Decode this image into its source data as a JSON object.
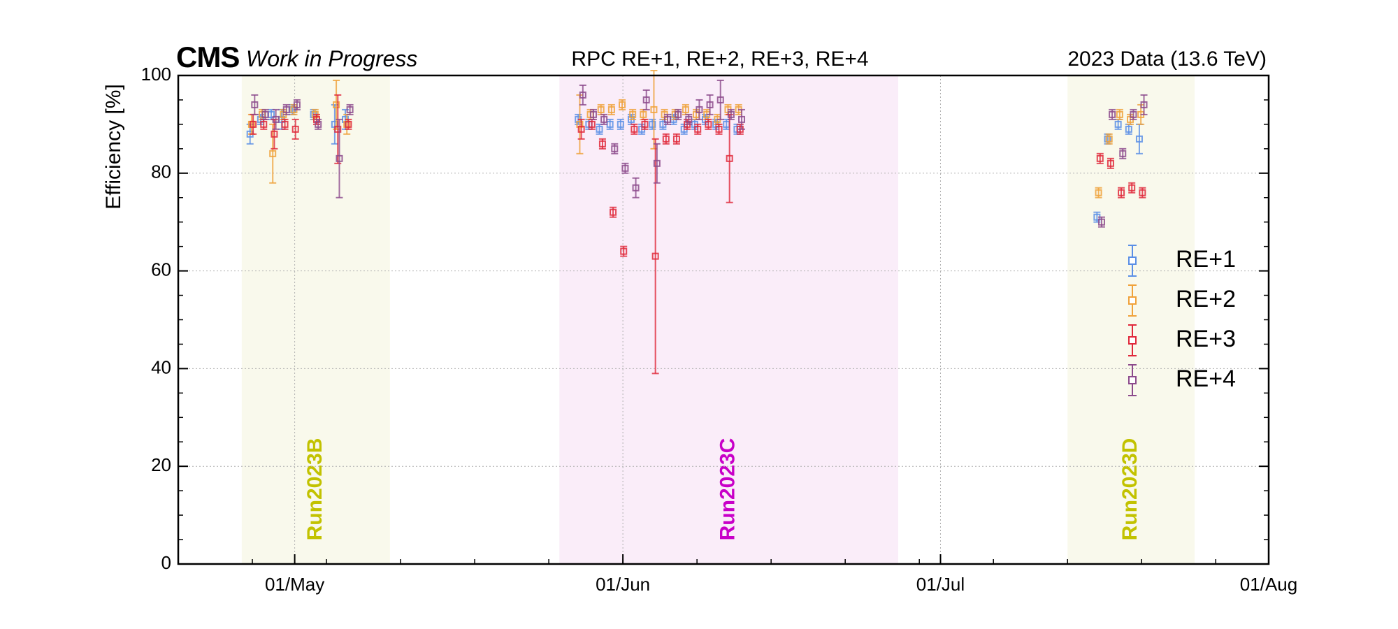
{
  "header": {
    "logo": "CMS",
    "extra": "Work in Progress",
    "title": "RPC RE+1, RE+2, RE+3, RE+4",
    "lumi": "2023 Data (13.6 TeV)"
  },
  "chart_data": {
    "type": "scatter",
    "title": "RPC RE+1, RE+2, RE+3, RE+4",
    "ylabel": "Efficiency [%]",
    "xlabel": "",
    "xlim": [
      "2023-04-20",
      "2023-08-01"
    ],
    "ylim": [
      0,
      100
    ],
    "yticks": [
      0,
      20,
      40,
      60,
      80,
      100
    ],
    "xticks": [
      {
        "date": "2023-05-01",
        "label": "01/May"
      },
      {
        "date": "2023-06-01",
        "label": "01/Jun"
      },
      {
        "date": "2023-07-01",
        "label": "01/Jul"
      },
      {
        "date": "2023-08-01",
        "label": "01/Aug"
      }
    ],
    "grid": true,
    "legend_position": "right",
    "eras": [
      {
        "name": "Run2023B",
        "start": "2023-04-26",
        "end": "2023-05-10",
        "color": "#c2c200",
        "fill": "#f9f9ec"
      },
      {
        "name": "Run2023C",
        "start": "2023-05-26",
        "end": "2023-06-27",
        "color": "#c800c8",
        "fill": "#faedf9"
      },
      {
        "name": "Run2023D",
        "start": "2023-07-13",
        "end": "2023-07-25",
        "color": "#c2c200",
        "fill": "#f9f9ec"
      }
    ],
    "series": [
      {
        "name": "RE+1",
        "color": "#5b8fe6",
        "points": [
          [
            "2023-04-27",
            88,
            2
          ],
          [
            "2023-04-28",
            91,
            1
          ],
          [
            "2023-04-29",
            92,
            1
          ],
          [
            "2023-04-30",
            91,
            2
          ],
          [
            "2023-05-01",
            93,
            1
          ],
          [
            "2023-05-03",
            92,
            1
          ],
          [
            "2023-05-05",
            90,
            4
          ],
          [
            "2023-05-06",
            91,
            2
          ],
          [
            "2023-05-28",
            91,
            1
          ],
          [
            "2023-05-29",
            90,
            1
          ],
          [
            "2023-05-30",
            89,
            1
          ],
          [
            "2023-05-31",
            90,
            1
          ],
          [
            "2023-06-01",
            90,
            1
          ],
          [
            "2023-06-02",
            91,
            1
          ],
          [
            "2023-06-03",
            89,
            1
          ],
          [
            "2023-06-04",
            90,
            1
          ],
          [
            "2023-06-05",
            90,
            1
          ],
          [
            "2023-06-06",
            91,
            1
          ],
          [
            "2023-06-07",
            89,
            1
          ],
          [
            "2023-06-08",
            90,
            1
          ],
          [
            "2023-06-09",
            91,
            1
          ],
          [
            "2023-06-10",
            90,
            1
          ],
          [
            "2023-06-11",
            90,
            1
          ],
          [
            "2023-06-12",
            89,
            1
          ],
          [
            "2023-07-16",
            71,
            1
          ],
          [
            "2023-07-17",
            87,
            1
          ],
          [
            "2023-07-18",
            90,
            1
          ],
          [
            "2023-07-19",
            89,
            1
          ],
          [
            "2023-07-20",
            87,
            3
          ]
        ]
      },
      {
        "name": "RE+2",
        "color": "#f0a23a",
        "points": [
          [
            "2023-04-27",
            90,
            2
          ],
          [
            "2023-04-28",
            92,
            1
          ],
          [
            "2023-04-29",
            84,
            6
          ],
          [
            "2023-04-30",
            92,
            1
          ],
          [
            "2023-05-01",
            93,
            1
          ],
          [
            "2023-05-03",
            92,
            1
          ],
          [
            "2023-05-05",
            94,
            5
          ],
          [
            "2023-05-06",
            90,
            2
          ],
          [
            "2023-05-28",
            90,
            6
          ],
          [
            "2023-05-29",
            92,
            1
          ],
          [
            "2023-05-30",
            93,
            1
          ],
          [
            "2023-05-31",
            93,
            1
          ],
          [
            "2023-06-01",
            94,
            1
          ],
          [
            "2023-06-02",
            92,
            1
          ],
          [
            "2023-06-03",
            92,
            1
          ],
          [
            "2023-06-04",
            93,
            8
          ],
          [
            "2023-06-05",
            92,
            1
          ],
          [
            "2023-06-06",
            92,
            1
          ],
          [
            "2023-06-07",
            93,
            1
          ],
          [
            "2023-06-08",
            92,
            1
          ],
          [
            "2023-06-09",
            92,
            1
          ],
          [
            "2023-06-10",
            91,
            1
          ],
          [
            "2023-06-11",
            93,
            1
          ],
          [
            "2023-06-12",
            93,
            1
          ],
          [
            "2023-07-16",
            76,
            1
          ],
          [
            "2023-07-17",
            87,
            1
          ],
          [
            "2023-07-18",
            92,
            1
          ],
          [
            "2023-07-19",
            91,
            1
          ],
          [
            "2023-07-20",
            92,
            2
          ]
        ]
      },
      {
        "name": "RE+3",
        "color": "#e0283a",
        "points": [
          [
            "2023-04-27",
            90,
            2
          ],
          [
            "2023-04-28",
            90,
            1
          ],
          [
            "2023-04-29",
            88,
            3
          ],
          [
            "2023-04-30",
            90,
            1
          ],
          [
            "2023-05-01",
            89,
            2
          ],
          [
            "2023-05-03",
            91,
            1
          ],
          [
            "2023-05-05",
            89,
            7
          ],
          [
            "2023-05-06",
            90,
            1
          ],
          [
            "2023-05-28",
            89,
            2
          ],
          [
            "2023-05-29",
            90,
            1
          ],
          [
            "2023-05-30",
            86,
            1
          ],
          [
            "2023-05-31",
            72,
            1
          ],
          [
            "2023-06-01",
            64,
            1
          ],
          [
            "2023-06-02",
            89,
            1
          ],
          [
            "2023-06-03",
            90,
            1
          ],
          [
            "2023-06-04",
            63,
            24
          ],
          [
            "2023-06-05",
            87,
            1
          ],
          [
            "2023-06-06",
            87,
            1
          ],
          [
            "2023-06-07",
            90,
            1
          ],
          [
            "2023-06-08",
            89,
            1
          ],
          [
            "2023-06-09",
            90,
            1
          ],
          [
            "2023-06-10",
            89,
            1
          ],
          [
            "2023-06-11",
            83,
            9
          ],
          [
            "2023-06-12",
            89,
            1
          ],
          [
            "2023-07-16",
            83,
            1
          ],
          [
            "2023-07-17",
            82,
            1
          ],
          [
            "2023-07-18",
            76,
            1
          ],
          [
            "2023-07-19",
            77,
            1
          ],
          [
            "2023-07-20",
            76,
            1
          ]
        ]
      },
      {
        "name": "RE+4",
        "color": "#8c4a8c",
        "points": [
          [
            "2023-04-27",
            94,
            2
          ],
          [
            "2023-04-28",
            92,
            1
          ],
          [
            "2023-04-29",
            91,
            2
          ],
          [
            "2023-04-30",
            93,
            1
          ],
          [
            "2023-05-01",
            94,
            1
          ],
          [
            "2023-05-03",
            90,
            1
          ],
          [
            "2023-05-05",
            83,
            8
          ],
          [
            "2023-05-06",
            93,
            1
          ],
          [
            "2023-05-28",
            96,
            2
          ],
          [
            "2023-05-29",
            92,
            1
          ],
          [
            "2023-05-30",
            91,
            1
          ],
          [
            "2023-05-31",
            85,
            1
          ],
          [
            "2023-06-01",
            81,
            1
          ],
          [
            "2023-06-02",
            77,
            2
          ],
          [
            "2023-06-03",
            95,
            2
          ],
          [
            "2023-06-04",
            82,
            4
          ],
          [
            "2023-06-05",
            91,
            1
          ],
          [
            "2023-06-06",
            92,
            1
          ],
          [
            "2023-06-07",
            91,
            1
          ],
          [
            "2023-06-08",
            93,
            2
          ],
          [
            "2023-06-09",
            94,
            2
          ],
          [
            "2023-06-10",
            95,
            4
          ],
          [
            "2023-06-11",
            92,
            1
          ],
          [
            "2023-06-12",
            91,
            2
          ],
          [
            "2023-07-16",
            70,
            1
          ],
          [
            "2023-07-17",
            92,
            1
          ],
          [
            "2023-07-18",
            84,
            1
          ],
          [
            "2023-07-19",
            92,
            1
          ],
          [
            "2023-07-20",
            94,
            2
          ]
        ]
      }
    ]
  }
}
